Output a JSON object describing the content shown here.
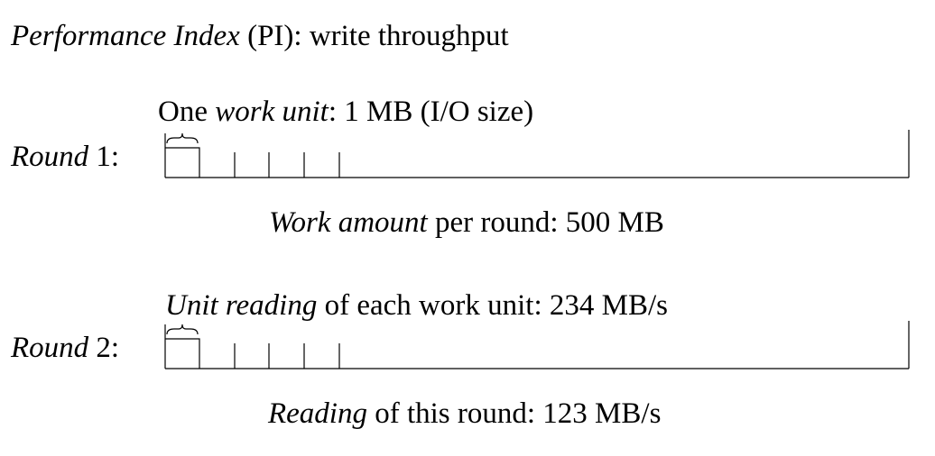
{
  "title": {
    "italic": "Performance Index",
    "rest": " (PI): write throughput"
  },
  "work_unit_label": {
    "prefix": "One ",
    "italic": "work unit",
    "rest": ": 1 MB (I/O size)"
  },
  "round1": {
    "italic": "Round",
    "rest": " 1:"
  },
  "work_amount": {
    "italic": "Work amount",
    "rest": " per round: 500 MB"
  },
  "unit_reading": {
    "italic": "Unit reading",
    "rest": " of each work unit: 234 MB/s"
  },
  "round2": {
    "italic": "Round",
    "rest": " 2:"
  },
  "round_reading": {
    "italic": "Reading",
    "rest": " of this round: 123 MB/s"
  },
  "colors": {
    "stroke": "#000000",
    "background": "#ffffff"
  }
}
